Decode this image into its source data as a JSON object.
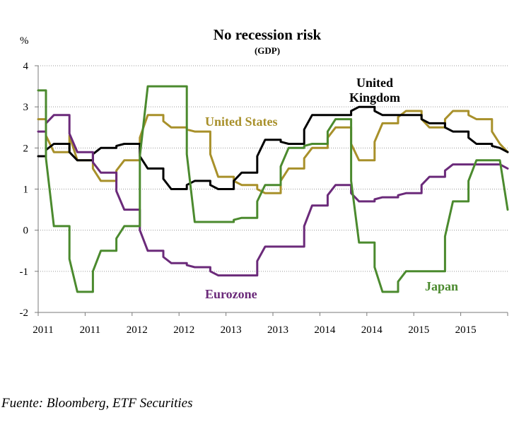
{
  "chart_data": {
    "type": "line",
    "title": "No recession risk",
    "subtitle": "(GDP)",
    "ylabel": "%",
    "ylim": [
      -2,
      4
    ],
    "yticks": [
      "4",
      "3",
      "2",
      "1",
      "0",
      "-1",
      "-2"
    ],
    "xtick_labels": [
      "2011",
      "2011",
      "2012",
      "2012",
      "2013",
      "2013",
      "2014",
      "2014",
      "2015",
      "2015"
    ],
    "x_range": [
      2011.0,
      2016.0
    ],
    "grid": "horizontal dotted",
    "series": [
      {
        "name": "United States",
        "color": "#a8902a",
        "label": "United States",
        "x": [
          2011.0,
          2011.083,
          2011.083,
          2011.167,
          2011.25,
          2011.333,
          2011.333,
          2011.417,
          2011.5,
          2011.583,
          2011.583,
          2011.667,
          2011.75,
          2011.833,
          2011.833,
          2011.917,
          2012.0,
          2012.083,
          2012.083,
          2012.167,
          2012.25,
          2012.333,
          2012.333,
          2012.417,
          2012.5,
          2012.583,
          2012.583,
          2012.667,
          2012.75,
          2012.833,
          2012.833,
          2012.917,
          2013.0,
          2013.083,
          2013.083,
          2013.167,
          2013.25,
          2013.333,
          2013.333,
          2013.417,
          2013.5,
          2013.583,
          2013.583,
          2013.667,
          2013.75,
          2013.833,
          2013.833,
          2013.917,
          2014.0,
          2014.083,
          2014.083,
          2014.167,
          2014.25,
          2014.333,
          2014.333,
          2014.417,
          2014.5,
          2014.583,
          2014.583,
          2014.667,
          2014.75,
          2014.833,
          2014.833,
          2014.917,
          2015.0,
          2015.083,
          2015.083,
          2015.167,
          2015.25,
          2015.333,
          2015.333,
          2015.417,
          2015.5,
          2015.583,
          2015.583,
          2015.667,
          2015.75,
          2015.833,
          2015.833,
          2015.917,
          2016.0
        ],
        "y": [
          2.7,
          2.7,
          2.3,
          1.9,
          1.9,
          1.9,
          2.3,
          1.7,
          1.7,
          1.7,
          1.5,
          1.2,
          1.2,
          1.2,
          1.45,
          1.7,
          1.7,
          1.7,
          2.25,
          2.8,
          2.8,
          2.8,
          2.65,
          2.5,
          2.5,
          2.5,
          2.45,
          2.4,
          2.4,
          2.4,
          1.85,
          1.3,
          1.3,
          1.3,
          1.2,
          1.1,
          1.1,
          1.1,
          1.0,
          0.9,
          0.9,
          0.9,
          1.2,
          1.5,
          1.5,
          1.5,
          1.75,
          2.0,
          2.0,
          2.0,
          2.25,
          2.5,
          2.5,
          2.5,
          2.1,
          1.7,
          1.7,
          1.7,
          2.15,
          2.6,
          2.6,
          2.6,
          2.75,
          2.9,
          2.9,
          2.9,
          2.7,
          2.5,
          2.5,
          2.5,
          2.7,
          2.9,
          2.9,
          2.9,
          2.8,
          2.7,
          2.7,
          2.7,
          2.4,
          2.1,
          1.9
        ]
      },
      {
        "name": "United Kingdom",
        "color": "#000000",
        "label_line1": "United",
        "label_line2": "Kingdom",
        "x": [
          2011.0,
          2011.083,
          2011.083,
          2011.167,
          2011.25,
          2011.333,
          2011.333,
          2011.417,
          2011.5,
          2011.583,
          2011.583,
          2011.667,
          2011.75,
          2011.833,
          2011.833,
          2011.917,
          2012.0,
          2012.083,
          2012.083,
          2012.167,
          2012.25,
          2012.333,
          2012.333,
          2012.417,
          2012.5,
          2012.583,
          2012.583,
          2012.667,
          2012.75,
          2012.833,
          2012.833,
          2012.917,
          2013.0,
          2013.083,
          2013.083,
          2013.167,
          2013.25,
          2013.333,
          2013.333,
          2013.417,
          2013.5,
          2013.583,
          2013.583,
          2013.667,
          2013.75,
          2013.833,
          2013.833,
          2013.917,
          2014.0,
          2014.083,
          2014.083,
          2014.167,
          2014.25,
          2014.333,
          2014.333,
          2014.417,
          2014.5,
          2014.583,
          2014.583,
          2014.667,
          2014.75,
          2014.833,
          2014.833,
          2014.917,
          2015.0,
          2015.083,
          2015.083,
          2015.167,
          2015.25,
          2015.333,
          2015.333,
          2015.417,
          2015.5,
          2015.583,
          2015.583,
          2015.667,
          2015.75,
          2015.833,
          2015.833,
          2015.917,
          2016.0
        ],
        "y": [
          1.8,
          1.8,
          1.95,
          2.1,
          2.1,
          2.1,
          1.9,
          1.7,
          1.7,
          1.7,
          1.85,
          2.0,
          2.0,
          2.0,
          2.05,
          2.1,
          2.1,
          2.1,
          1.8,
          1.5,
          1.5,
          1.5,
          1.25,
          1.0,
          1.0,
          1.0,
          1.1,
          1.2,
          1.2,
          1.2,
          1.1,
          1.0,
          1.0,
          1.0,
          1.2,
          1.4,
          1.4,
          1.4,
          1.8,
          2.2,
          2.2,
          2.2,
          2.15,
          2.1,
          2.1,
          2.1,
          2.45,
          2.8,
          2.8,
          2.8,
          2.8,
          2.8,
          2.8,
          2.8,
          2.9,
          3.0,
          3.0,
          3.0,
          2.9,
          2.8,
          2.8,
          2.8,
          2.8,
          2.8,
          2.8,
          2.8,
          2.7,
          2.6,
          2.6,
          2.6,
          2.5,
          2.4,
          2.4,
          2.4,
          2.25,
          2.1,
          2.1,
          2.1,
          2.05,
          2.0,
          1.9
        ]
      },
      {
        "name": "Eurozone",
        "color": "#6b2a7a",
        "label": "Eurozone",
        "x": [
          2011.0,
          2011.083,
          2011.083,
          2011.167,
          2011.25,
          2011.333,
          2011.333,
          2011.417,
          2011.5,
          2011.583,
          2011.583,
          2011.667,
          2011.75,
          2011.833,
          2011.833,
          2011.917,
          2012.0,
          2012.083,
          2012.083,
          2012.167,
          2012.25,
          2012.333,
          2012.333,
          2012.417,
          2012.5,
          2012.583,
          2012.583,
          2012.667,
          2012.75,
          2012.833,
          2012.833,
          2012.917,
          2013.0,
          2013.083,
          2013.083,
          2013.167,
          2013.25,
          2013.333,
          2013.333,
          2013.417,
          2013.5,
          2013.583,
          2013.583,
          2013.667,
          2013.75,
          2013.833,
          2013.833,
          2013.917,
          2014.0,
          2014.083,
          2014.083,
          2014.167,
          2014.25,
          2014.333,
          2014.333,
          2014.417,
          2014.5,
          2014.583,
          2014.583,
          2014.667,
          2014.75,
          2014.833,
          2014.833,
          2014.917,
          2015.0,
          2015.083,
          2015.083,
          2015.167,
          2015.25,
          2015.333,
          2015.333,
          2015.417,
          2015.5,
          2015.583,
          2015.583,
          2015.667,
          2015.75,
          2015.833,
          2015.833,
          2015.917,
          2016.0
        ],
        "y": [
          2.4,
          2.4,
          2.6,
          2.8,
          2.8,
          2.8,
          2.35,
          1.9,
          1.9,
          1.9,
          1.65,
          1.4,
          1.4,
          1.4,
          0.95,
          0.5,
          0.5,
          0.5,
          0.0,
          -0.5,
          -0.5,
          -0.5,
          -0.65,
          -0.8,
          -0.8,
          -0.8,
          -0.85,
          -0.9,
          -0.9,
          -0.9,
          -1.0,
          -1.1,
          -1.1,
          -1.1,
          -1.1,
          -1.1,
          -1.1,
          -1.1,
          -0.75,
          -0.4,
          -0.4,
          -0.4,
          -0.4,
          -0.4,
          -0.4,
          -0.4,
          0.1,
          0.6,
          0.6,
          0.6,
          0.85,
          1.1,
          1.1,
          1.1,
          0.9,
          0.7,
          0.7,
          0.7,
          0.75,
          0.8,
          0.8,
          0.8,
          0.85,
          0.9,
          0.9,
          0.9,
          1.1,
          1.3,
          1.3,
          1.3,
          1.45,
          1.6,
          1.6,
          1.6,
          1.6,
          1.6,
          1.6,
          1.6,
          1.6,
          1.6,
          1.5
        ]
      },
      {
        "name": "Japan",
        "color": "#4b8a2e",
        "label": "Japan",
        "x": [
          2011.0,
          2011.083,
          2011.083,
          2011.167,
          2011.25,
          2011.333,
          2011.333,
          2011.417,
          2011.5,
          2011.583,
          2011.583,
          2011.667,
          2011.75,
          2011.833,
          2011.833,
          2011.917,
          2012.0,
          2012.083,
          2012.083,
          2012.167,
          2012.25,
          2012.333,
          2012.333,
          2012.417,
          2012.5,
          2012.583,
          2012.583,
          2012.667,
          2012.75,
          2012.833,
          2012.833,
          2012.917,
          2013.0,
          2013.083,
          2013.083,
          2013.167,
          2013.25,
          2013.333,
          2013.333,
          2013.417,
          2013.5,
          2013.583,
          2013.583,
          2013.667,
          2013.75,
          2013.833,
          2013.833,
          2013.917,
          2014.0,
          2014.083,
          2014.083,
          2014.167,
          2014.25,
          2014.333,
          2014.333,
          2014.417,
          2014.5,
          2014.583,
          2014.583,
          2014.667,
          2014.75,
          2014.833,
          2014.833,
          2014.917,
          2015.0,
          2015.083,
          2015.083,
          2015.167,
          2015.25,
          2015.333,
          2015.333,
          2015.417,
          2015.5,
          2015.583,
          2015.583,
          2015.667,
          2015.75,
          2015.833,
          2015.833,
          2015.917,
          2016.0
        ],
        "y": [
          3.4,
          3.4,
          1.75,
          0.1,
          0.1,
          0.1,
          -0.7,
          -1.5,
          -1.5,
          -1.5,
          -1.0,
          -0.5,
          -0.5,
          -0.5,
          -0.2,
          0.1,
          0.1,
          0.1,
          1.8,
          3.5,
          3.5,
          3.5,
          3.5,
          3.5,
          3.5,
          3.5,
          1.85,
          0.2,
          0.2,
          0.2,
          0.2,
          0.2,
          0.2,
          0.2,
          0.25,
          0.3,
          0.3,
          0.3,
          0.7,
          1.1,
          1.1,
          1.1,
          1.55,
          2.0,
          2.0,
          2.0,
          2.05,
          2.1,
          2.1,
          2.1,
          2.4,
          2.7,
          2.7,
          2.7,
          1.2,
          -0.3,
          -0.3,
          -0.3,
          -0.9,
          -1.5,
          -1.5,
          -1.5,
          -1.25,
          -1.0,
          -1.0,
          -1.0,
          -1.0,
          -1.0,
          -1.0,
          -1.0,
          -0.15,
          0.7,
          0.7,
          0.7,
          1.2,
          1.7,
          1.7,
          1.7,
          1.7,
          1.7,
          0.5
        ]
      }
    ]
  },
  "source": "Fuente: Bloomberg, ETF Securities"
}
